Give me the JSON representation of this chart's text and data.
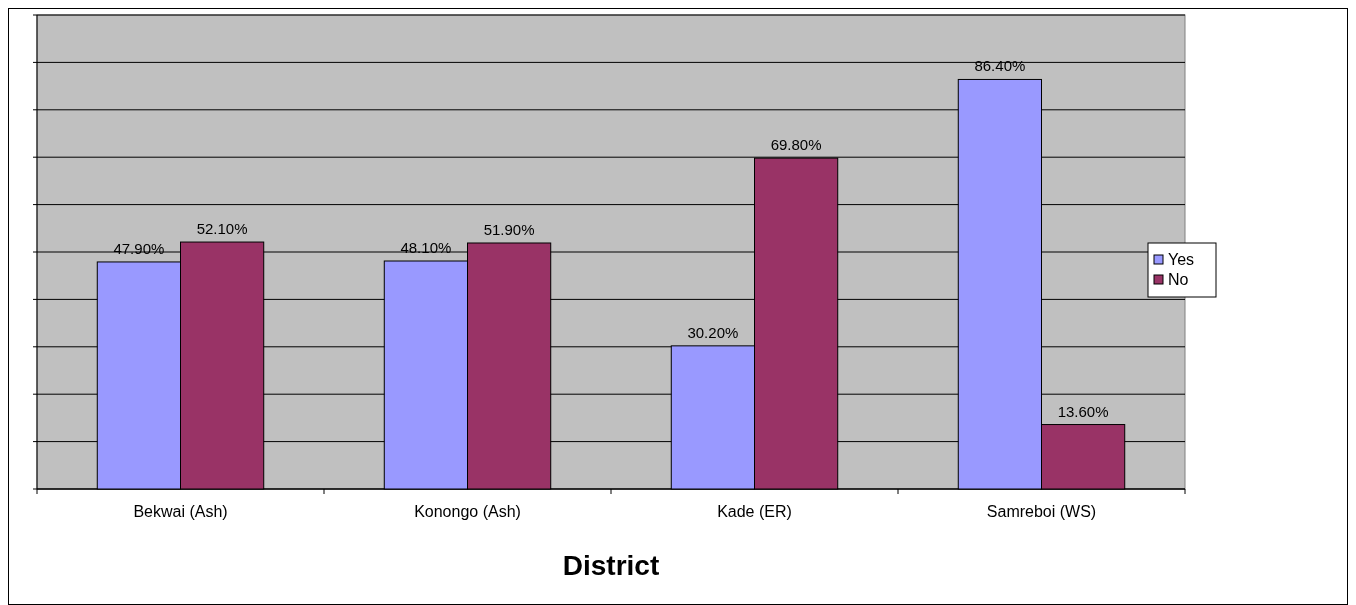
{
  "chart_data": {
    "type": "bar",
    "xlabel": "District",
    "categories": [
      "Bekwai (Ash)",
      "Konongo (Ash)",
      "Kade (ER)",
      "Samreboi (WS)"
    ],
    "series": [
      {
        "name": "Yes",
        "color": "#9999ff",
        "values": [
          47.9,
          48.1,
          30.2,
          86.4
        ],
        "value_labels": [
          "47.90%",
          "48.10%",
          "30.20%",
          "86.40%"
        ]
      },
      {
        "name": "No",
        "color": "#993366",
        "values": [
          52.1,
          51.9,
          69.8,
          13.6
        ],
        "value_labels": [
          "52.10%",
          "51.90%",
          "69.80%",
          "13.60%"
        ]
      }
    ],
    "ylim": [
      0,
      100
    ],
    "yticks": [
      {
        "value": 0,
        "label": null
      },
      {
        "value": 10,
        "label": null
      },
      {
        "value": 20,
        "label": null
      },
      {
        "value": 30,
        "label": null
      },
      {
        "value": 40,
        "label": null
      },
      {
        "value": 50,
        "label": null
      },
      {
        "value": 60,
        "label": null
      },
      {
        "value": 70,
        "label": null
      },
      {
        "value": 80,
        "label": null
      },
      {
        "value": 90,
        "label": null
      },
      {
        "value": 100,
        "label": null
      }
    ],
    "grid": "y",
    "legend": "right",
    "tick_labels": "x"
  }
}
